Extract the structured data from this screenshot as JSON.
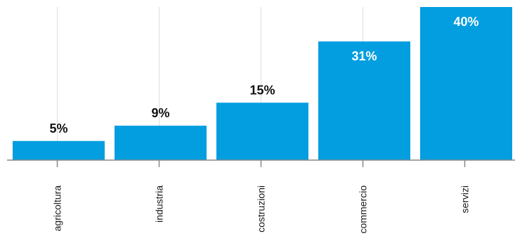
{
  "chart_data": {
    "type": "bar",
    "categories": [
      "agricoltura",
      "industria",
      "costruzioni",
      "commercio",
      "servizi"
    ],
    "values": [
      5,
      9,
      15,
      31,
      40
    ],
    "value_labels": [
      "5%",
      "9%",
      "15%",
      "31%",
      "40%"
    ],
    "title": "",
    "xlabel": "",
    "ylabel": "",
    "ylim": [
      0,
      40
    ],
    "grid": true,
    "legend": "none",
    "colors": {
      "bar": "#029ee0",
      "label_outside": "#111111",
      "label_inside": "#ffffff",
      "axis": "#888888",
      "grid": "#dddddd"
    }
  }
}
